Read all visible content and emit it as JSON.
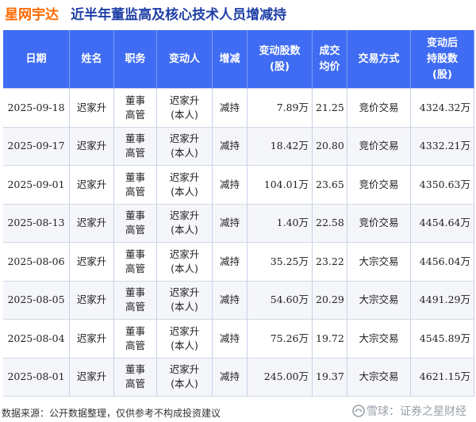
{
  "title": {
    "company": "星网宇达",
    "text": "近半年董监高及核心技术人员增减持"
  },
  "table": {
    "headers": {
      "date": "日期",
      "name": "姓名",
      "position": "职务",
      "changer_line1": "变动人",
      "change": "增减",
      "shares_line1": "变动股数",
      "shares_line2": "(股)",
      "price_line1": "成交",
      "price_line2": "均价",
      "method": "交易方式",
      "after_line1": "变动后",
      "after_line2": "持股数",
      "after_line3": "(股)"
    },
    "rows": [
      {
        "date": "2025-09-18",
        "name": "迟家升",
        "pos1": "董事",
        "pos2": "高管",
        "ch1": "迟家升",
        "ch2": "(本人)",
        "change": "减持",
        "shares": "7.89万",
        "price": "21.25",
        "method": "竞价交易",
        "after": "4324.32万"
      },
      {
        "date": "2025-09-17",
        "name": "迟家升",
        "pos1": "董事",
        "pos2": "高管",
        "ch1": "迟家升",
        "ch2": "(本人)",
        "change": "减持",
        "shares": "18.42万",
        "price": "20.80",
        "method": "竞价交易",
        "after": "4332.21万"
      },
      {
        "date": "2025-09-01",
        "name": "迟家升",
        "pos1": "董事",
        "pos2": "高管",
        "ch1": "迟家升",
        "ch2": "(本人)",
        "change": "减持",
        "shares": "104.01万",
        "price": "23.65",
        "method": "竞价交易",
        "after": "4350.63万"
      },
      {
        "date": "2025-08-13",
        "name": "迟家升",
        "pos1": "董事",
        "pos2": "高管",
        "ch1": "迟家升",
        "ch2": "(本人)",
        "change": "减持",
        "shares": "1.40万",
        "price": "22.58",
        "method": "竞价交易",
        "after": "4454.64万"
      },
      {
        "date": "2025-08-06",
        "name": "迟家升",
        "pos1": "董事",
        "pos2": "高管",
        "ch1": "迟家升",
        "ch2": "(本人)",
        "change": "减持",
        "shares": "35.25万",
        "price": "23.22",
        "method": "大宗交易",
        "after": "4456.04万"
      },
      {
        "date": "2025-08-05",
        "name": "迟家升",
        "pos1": "董事",
        "pos2": "高管",
        "ch1": "迟家升",
        "ch2": "(本人)",
        "change": "减持",
        "shares": "54.60万",
        "price": "20.29",
        "method": "大宗交易",
        "after": "4491.29万"
      },
      {
        "date": "2025-08-04",
        "name": "迟家升",
        "pos1": "董事",
        "pos2": "高管",
        "ch1": "迟家升",
        "ch2": "(本人)",
        "change": "减持",
        "shares": "75.26万",
        "price": "19.72",
        "method": "大宗交易",
        "after": "4545.89万"
      },
      {
        "date": "2025-08-01",
        "name": "迟家升",
        "pos1": "董事",
        "pos2": "高管",
        "ch1": "迟家升",
        "ch2": "(本人)",
        "change": "减持",
        "shares": "245.00万",
        "price": "19.37",
        "method": "大宗交易",
        "after": "4621.15万"
      }
    ]
  },
  "footer": {
    "source": "数据来源：公开数据整理，仅供参考不构成投资建议",
    "brand": "雪球：证券之星财经"
  },
  "watermark": "证券之星",
  "colors": {
    "header_bg": "#3f6cf2",
    "company": "#ff6a00",
    "title": "#1f3fa6",
    "decrease": "#1aa52a"
  }
}
